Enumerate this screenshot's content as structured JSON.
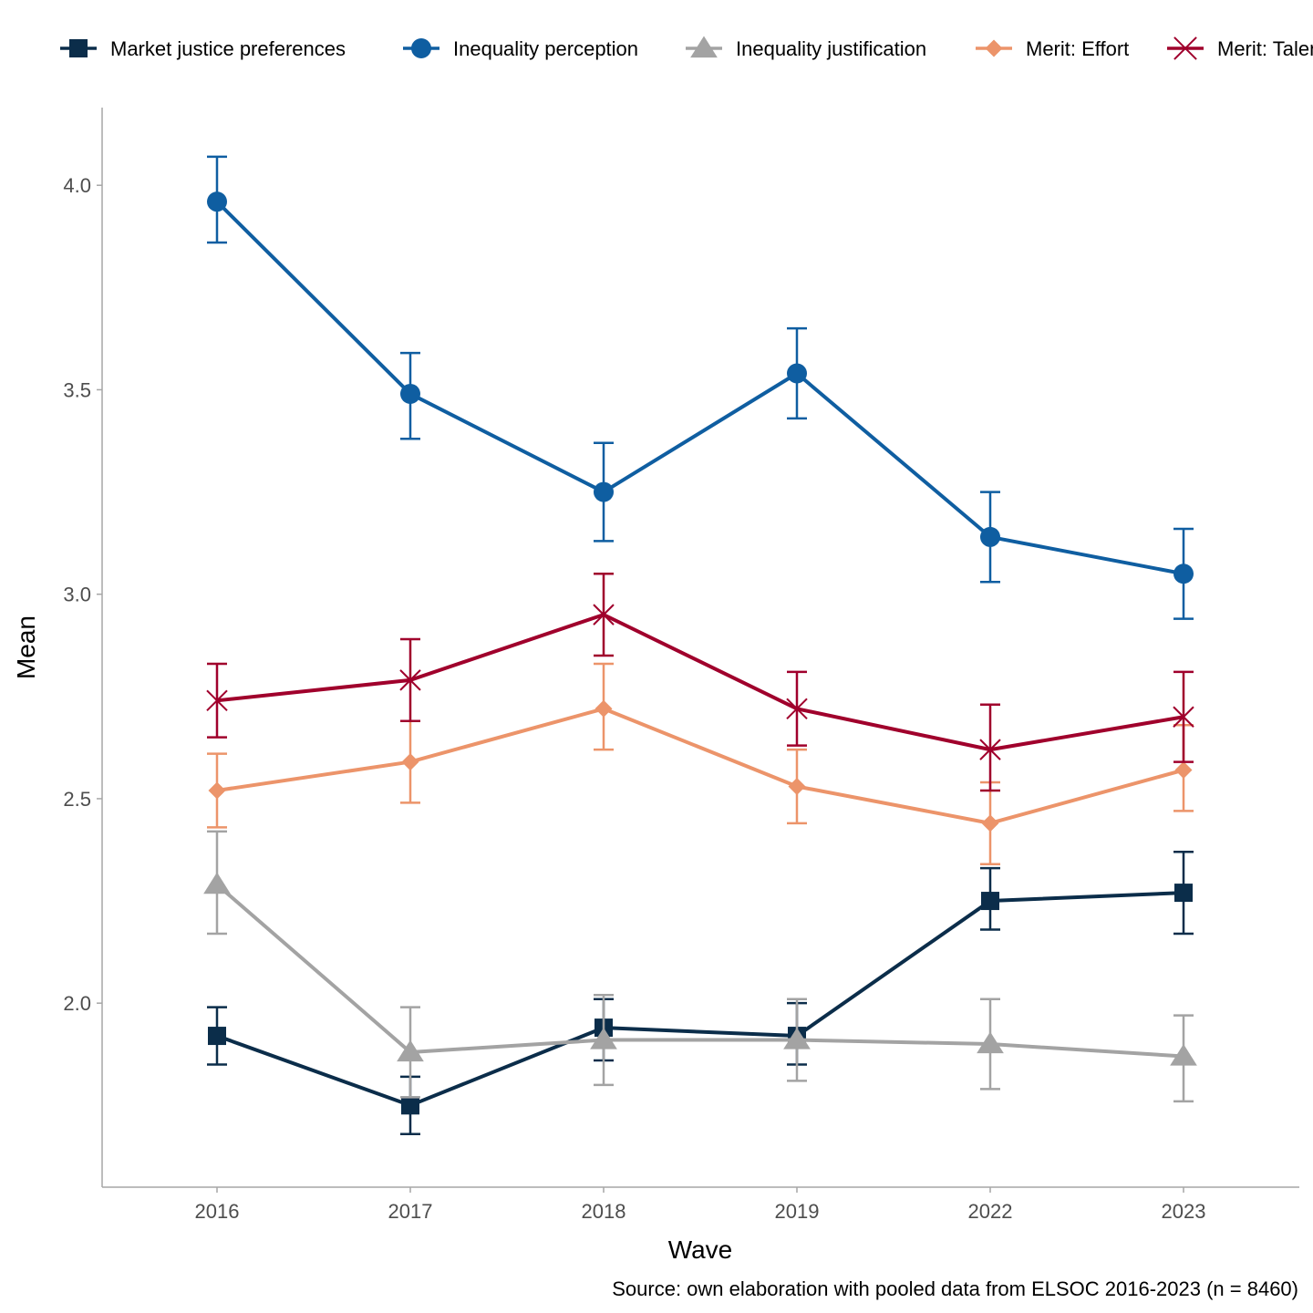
{
  "chart_data": {
    "type": "line",
    "x": [
      "2016",
      "2017",
      "2018",
      "2019",
      "2022",
      "2023"
    ],
    "xlabel": "Wave",
    "ylabel": "Mean",
    "ylim": [
      1.55,
      4.19
    ],
    "yticks": [
      2.0,
      2.5,
      3.0,
      3.5,
      4.0
    ],
    "ytick_labels": [
      "2.0",
      "2.5",
      "3.0",
      "3.5",
      "4.0"
    ],
    "grid": false,
    "legend_position": "top",
    "caption": "Source: own elaboration with pooled data from ELSOC 2016-2023 (n = 8460)",
    "series": [
      {
        "name": "Market justice preferences",
        "color": "#0b2d4a",
        "marker": "square",
        "values": [
          1.92,
          1.75,
          1.94,
          1.92,
          2.25,
          2.27
        ],
        "lower": [
          1.85,
          1.68,
          1.86,
          1.85,
          2.18,
          2.17
        ],
        "upper": [
          1.99,
          1.82,
          2.01,
          2.0,
          2.33,
          2.37
        ]
      },
      {
        "name": "Inequality perception",
        "color": "#0f5ea1",
        "marker": "circle",
        "values": [
          3.96,
          3.49,
          3.25,
          3.54,
          3.14,
          3.05
        ],
        "lower": [
          3.86,
          3.38,
          3.13,
          3.43,
          3.03,
          2.94
        ],
        "upper": [
          4.07,
          3.59,
          3.37,
          3.65,
          3.25,
          3.16
        ]
      },
      {
        "name": "Inequality justification",
        "color": "#a3a3a3",
        "marker": "triangle",
        "values": [
          2.29,
          1.88,
          1.91,
          1.91,
          1.9,
          1.87
        ],
        "lower": [
          2.17,
          1.77,
          1.8,
          1.81,
          1.79,
          1.76
        ],
        "upper": [
          2.42,
          1.99,
          2.02,
          2.01,
          2.01,
          1.97
        ]
      },
      {
        "name": "Merit: Effort",
        "color": "#ec946a",
        "marker": "diamond",
        "values": [
          2.52,
          2.59,
          2.72,
          2.53,
          2.44,
          2.57
        ],
        "lower": [
          2.43,
          2.49,
          2.62,
          2.44,
          2.34,
          2.47
        ],
        "upper": [
          2.61,
          2.69,
          2.83,
          2.62,
          2.54,
          2.68
        ]
      },
      {
        "name": "Merit: Talent",
        "color": "#a0002c",
        "marker": "x",
        "values": [
          2.74,
          2.79,
          2.95,
          2.72,
          2.62,
          2.7
        ],
        "lower": [
          2.65,
          2.69,
          2.85,
          2.63,
          2.52,
          2.59
        ],
        "upper": [
          2.83,
          2.89,
          3.05,
          2.81,
          2.73,
          2.81
        ]
      }
    ]
  }
}
